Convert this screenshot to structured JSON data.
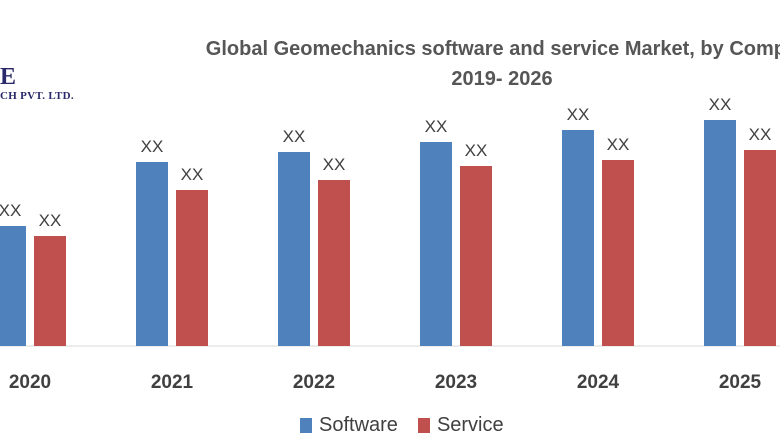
{
  "logo": {
    "mark": "E",
    "subtitle": "CH PVT. LTD."
  },
  "chart_data": {
    "type": "bar",
    "title_lines": [
      "Global Geomechanics software and service Market, by Compo",
      "2019- 2026"
    ],
    "categories": [
      "2020",
      "2021",
      "2022",
      "2023",
      "2024",
      "2025"
    ],
    "series": [
      {
        "name": "Software",
        "color": "#4f81bd",
        "values": [
          30,
          46,
          48.5,
          51,
          54,
          56.5
        ],
        "labels": [
          "XX",
          "XX",
          "XX",
          "XX",
          "XX",
          "XX"
        ]
      },
      {
        "name": "Service",
        "color": "#c0504d",
        "values": [
          27.5,
          39,
          41.5,
          45,
          46.5,
          49
        ],
        "labels": [
          "XX",
          "XX",
          "XX",
          "XX",
          "XX",
          "XX"
        ]
      }
    ],
    "ylim": [
      0,
      100
    ],
    "grid": false,
    "legend_position": "bottom"
  }
}
